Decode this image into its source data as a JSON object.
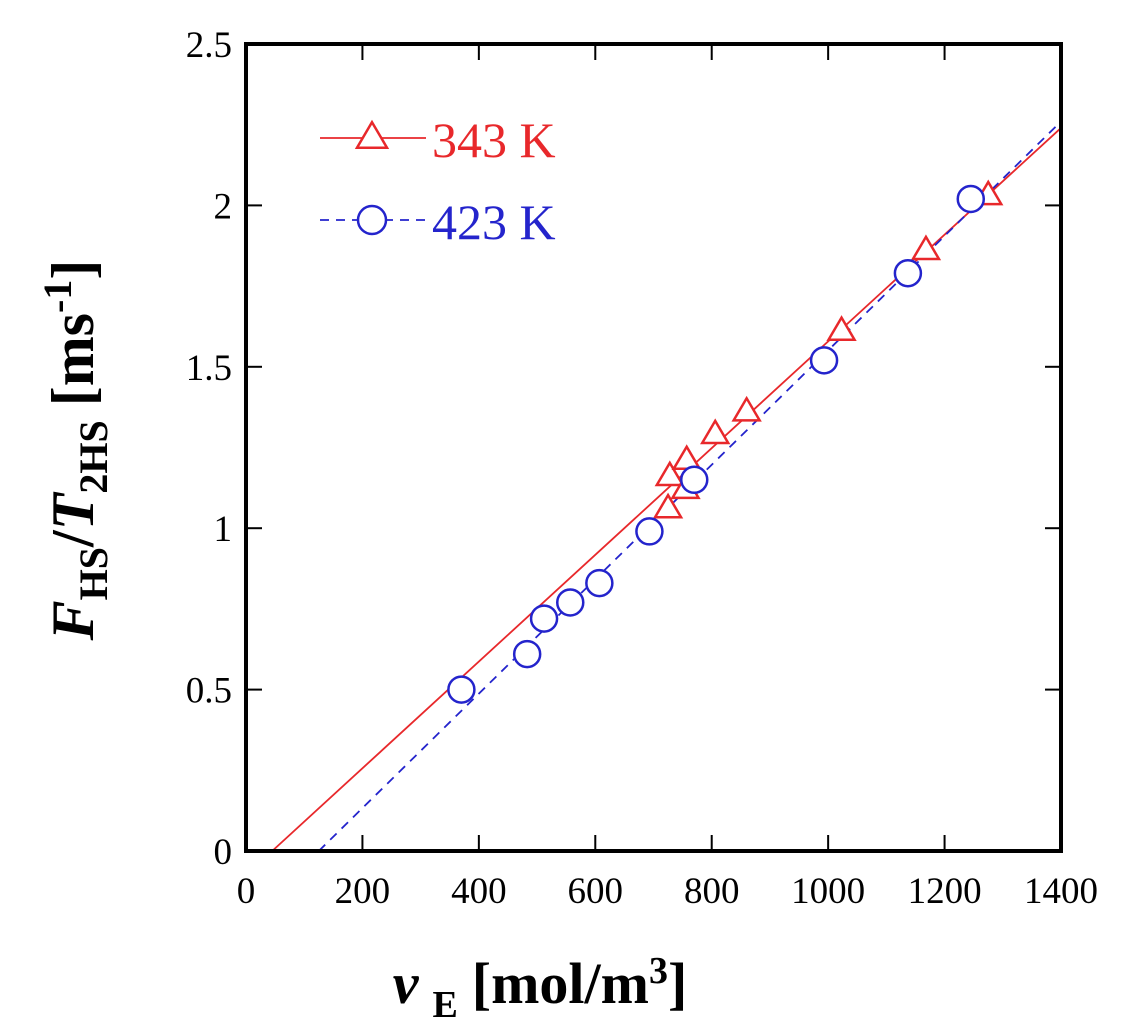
{
  "chart_data": {
    "type": "scatter",
    "xlim": [
      0,
      1400
    ],
    "ylim": [
      0,
      2.5
    ],
    "x_ticks": [
      0,
      200,
      400,
      600,
      800,
      1000,
      1200,
      1400
    ],
    "y_ticks": [
      0,
      0.5,
      1,
      1.5,
      2,
      2.5
    ],
    "x_tick_labels": [
      "0",
      "200",
      "400",
      "600",
      "800",
      "1000",
      "1200",
      "1400"
    ],
    "y_tick_labels": [
      "0",
      "0.5",
      "1",
      "1.5",
      "2",
      "2.5"
    ],
    "xlabel": {
      "symbol": "ν",
      "subscript": "E",
      "unit_open": "[mol/m",
      "unit_sup": "3",
      "unit_close": "]"
    },
    "ylabel": {
      "num": "F",
      "num_sub": "HS",
      "slash": "/",
      "den": "T",
      "den_sub": "2HS",
      "unit_open": "[ms",
      "unit_sup": "-1",
      "unit_close": "]"
    },
    "grid": false,
    "legend_position": "top-left",
    "series": [
      {
        "name": "343 K",
        "color": "#e8282b",
        "marker": "triangle",
        "line_style": "solid",
        "points": [
          [
            725,
            1.06
          ],
          [
            728,
            1.16
          ],
          [
            755,
            1.12
          ],
          [
            757,
            1.21
          ],
          [
            806,
            1.29
          ],
          [
            860,
            1.36
          ],
          [
            1023,
            1.61
          ],
          [
            1168,
            1.86
          ],
          [
            1275,
            2.03
          ]
        ],
        "fit_line": [
          [
            45,
            0
          ],
          [
            1400,
            2.24
          ]
        ]
      },
      {
        "name": "423 K",
        "color": "#2424cc",
        "marker": "circle",
        "line_style": "dashed",
        "points": [
          [
            370,
            0.5
          ],
          [
            483,
            0.61
          ],
          [
            512,
            0.72
          ],
          [
            557,
            0.77
          ],
          [
            607,
            0.83
          ],
          [
            693,
            0.99
          ],
          [
            770,
            1.15
          ],
          [
            993,
            1.52
          ],
          [
            1137,
            1.79
          ],
          [
            1245,
            2.02
          ]
        ],
        "fit_line": [
          [
            125,
            0
          ],
          [
            1400,
            2.26
          ]
        ]
      }
    ]
  }
}
